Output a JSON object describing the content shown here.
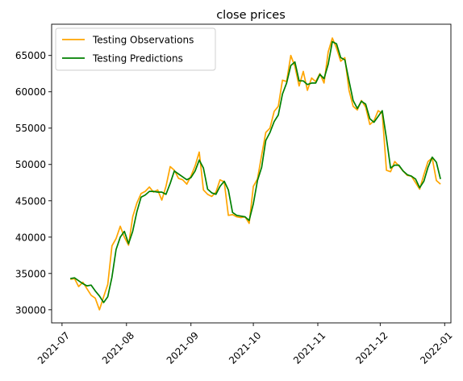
{
  "chart_data": {
    "type": "line",
    "title": "close prices",
    "xlabel": "",
    "ylabel": "",
    "x_ticks": [
      "2021-07",
      "2021-08",
      "2021-09",
      "2021-10",
      "2021-11",
      "2021-12",
      "2022-01"
    ],
    "y_ticks": [
      "30000",
      "35000",
      "40000",
      "45000",
      "50000",
      "55000",
      "60000",
      "65000"
    ],
    "xlim": [
      "2021-06-26",
      "2022-01-04"
    ],
    "ylim": [
      28200,
      69300
    ],
    "grid": false,
    "legend": "top-left",
    "dates": [
      "2021-07-05",
      "2021-07-07",
      "2021-07-09",
      "2021-07-11",
      "2021-07-13",
      "2021-07-15",
      "2021-07-17",
      "2021-07-19",
      "2021-07-21",
      "2021-07-23",
      "2021-07-25",
      "2021-07-27",
      "2021-07-29",
      "2021-07-31",
      "2021-08-02",
      "2021-08-04",
      "2021-08-06",
      "2021-08-08",
      "2021-08-10",
      "2021-08-12",
      "2021-08-14",
      "2021-08-16",
      "2021-08-18",
      "2021-08-20",
      "2021-08-22",
      "2021-08-24",
      "2021-08-26",
      "2021-08-28",
      "2021-08-30",
      "2021-09-01",
      "2021-09-03",
      "2021-09-05",
      "2021-09-07",
      "2021-09-09",
      "2021-09-11",
      "2021-09-13",
      "2021-09-15",
      "2021-09-17",
      "2021-09-19",
      "2021-09-21",
      "2021-09-23",
      "2021-09-25",
      "2021-09-27",
      "2021-09-29",
      "2021-10-01",
      "2021-10-03",
      "2021-10-05",
      "2021-10-07",
      "2021-10-09",
      "2021-10-11",
      "2021-10-13",
      "2021-10-15",
      "2021-10-17",
      "2021-10-19",
      "2021-10-21",
      "2021-10-23",
      "2021-10-25",
      "2021-10-27",
      "2021-10-29",
      "2021-10-31",
      "2021-11-02",
      "2021-11-04",
      "2021-11-06",
      "2021-11-08",
      "2021-11-10",
      "2021-11-12",
      "2021-11-14",
      "2021-11-16",
      "2021-11-18",
      "2021-11-20",
      "2021-11-22",
      "2021-11-24",
      "2021-11-26",
      "2021-11-28",
      "2021-11-30",
      "2021-12-02",
      "2021-12-04",
      "2021-12-06",
      "2021-12-08",
      "2021-12-10",
      "2021-12-12",
      "2021-12-14",
      "2021-12-16",
      "2021-12-18",
      "2021-12-20",
      "2021-12-22",
      "2021-12-24",
      "2021-12-26",
      "2021-12-28",
      "2021-12-30"
    ],
    "series": [
      {
        "name": "Testing Observations",
        "color": "#FFA500",
        "values": [
          34200,
          34300,
          33200,
          33800,
          32900,
          32000,
          31600,
          30000,
          31800,
          33500,
          38800,
          39800,
          41500,
          40000,
          38900,
          42800,
          44700,
          46000,
          46300,
          46900,
          46200,
          46500,
          45100,
          47000,
          49700,
          49200,
          48100,
          47900,
          47300,
          48400,
          49800,
          51700,
          46500,
          45900,
          45600,
          46200,
          47900,
          47600,
          43000,
          43100,
          42800,
          42700,
          42800,
          41900,
          47000,
          48000,
          51300,
          54400,
          55000,
          57300,
          58000,
          61600,
          61400,
          65000,
          63500,
          60800,
          62800,
          60200,
          61900,
          61400,
          62500,
          61200,
          65500,
          67400,
          66000,
          64200,
          64700,
          60200,
          58000,
          57500,
          58800,
          57900,
          55500,
          56000,
          57400,
          57000,
          49200,
          49000,
          50400,
          49800,
          49100,
          48500,
          48400,
          47500,
          46600,
          48600,
          50400,
          50900,
          47800,
          47300
        ]
      },
      {
        "name": "Testing Predictions",
        "color": "#008000",
        "values": [
          34300,
          34400,
          34000,
          33600,
          33300,
          33400,
          32600,
          31900,
          31000,
          31800,
          34500,
          38300,
          40000,
          40800,
          39100,
          40800,
          43500,
          45500,
          45800,
          46300,
          46300,
          46200,
          46200,
          45900,
          47400,
          49100,
          48700,
          48300,
          47900,
          48200,
          49100,
          50600,
          49500,
          46600,
          46100,
          45900,
          47000,
          47700,
          46500,
          43400,
          43000,
          42900,
          42800,
          42300,
          44600,
          47800,
          49600,
          53300,
          54400,
          55900,
          56800,
          59700,
          61200,
          63600,
          64100,
          61500,
          61500,
          61000,
          61200,
          61200,
          62400,
          61800,
          63800,
          66900,
          66600,
          64700,
          64400,
          61500,
          58800,
          57700,
          58700,
          58300,
          56300,
          55800,
          56600,
          57400,
          53600,
          49500,
          49900,
          49900,
          49100,
          48600,
          48400,
          48000,
          46800,
          47700,
          49600,
          51000,
          50300,
          48000
        ]
      }
    ]
  }
}
